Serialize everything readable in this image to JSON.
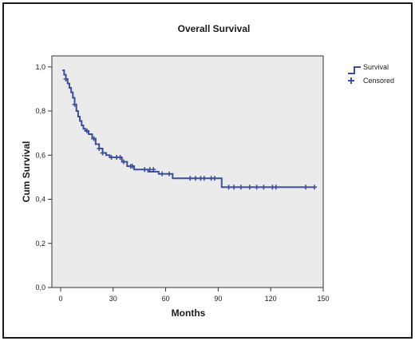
{
  "chart_data": {
    "type": "line",
    "title": "Overall Survival",
    "xlabel": "Months",
    "ylabel": "Cum Survival",
    "xlim": [
      -5,
      150
    ],
    "ylim": [
      0,
      1.05
    ],
    "xticks": [
      0,
      30,
      60,
      90,
      120,
      150
    ],
    "yticks": [
      0.0,
      0.2,
      0.4,
      0.6,
      0.8,
      1.0
    ],
    "xtick_labels": [
      "0",
      "30",
      "60",
      "90",
      "120",
      "150"
    ],
    "ytick_labels": [
      "0,0",
      "0,2",
      "0,4",
      "0,6",
      "0,8",
      "1,0"
    ],
    "grid": false,
    "legend_position": "top-right",
    "legend": [
      {
        "key": "survival",
        "label": "Survival",
        "symbol": "step-line-icon"
      },
      {
        "key": "censored",
        "label": "Censored",
        "symbol": "plus-icon"
      }
    ],
    "colors": {
      "series": "#3b4f9a",
      "plot_bg": "#ebebeb",
      "frame": "#1a1a1a"
    },
    "series": [
      {
        "key": "survival",
        "type": "step",
        "x": [
          1,
          2,
          3,
          4,
          5,
          6,
          7,
          8,
          9,
          10,
          11,
          12,
          13,
          14,
          16,
          18,
          20,
          22,
          24,
          26,
          28,
          35,
          38,
          42,
          50,
          56,
          64,
          92,
          145
        ],
        "y": [
          0.985,
          0.965,
          0.945,
          0.925,
          0.905,
          0.885,
          0.86,
          0.83,
          0.8,
          0.775,
          0.755,
          0.735,
          0.72,
          0.71,
          0.695,
          0.675,
          0.65,
          0.63,
          0.61,
          0.6,
          0.59,
          0.57,
          0.55,
          0.535,
          0.525,
          0.515,
          0.495,
          0.455,
          0.455
        ]
      },
      {
        "key": "censored",
        "type": "scatter",
        "x": [
          3,
          8,
          15,
          19,
          22,
          24,
          29,
          32,
          34,
          36,
          40,
          41,
          48,
          51,
          53,
          58,
          62,
          74,
          77,
          80,
          82,
          86,
          88,
          96,
          99,
          103,
          108,
          112,
          116,
          121,
          123,
          140,
          145
        ],
        "y": [
          0.945,
          0.83,
          0.71,
          0.675,
          0.63,
          0.61,
          0.59,
          0.59,
          0.59,
          0.57,
          0.55,
          0.55,
          0.535,
          0.535,
          0.535,
          0.515,
          0.515,
          0.495,
          0.495,
          0.495,
          0.495,
          0.495,
          0.495,
          0.455,
          0.455,
          0.455,
          0.455,
          0.455,
          0.455,
          0.455,
          0.455,
          0.455,
          0.455
        ]
      }
    ]
  }
}
